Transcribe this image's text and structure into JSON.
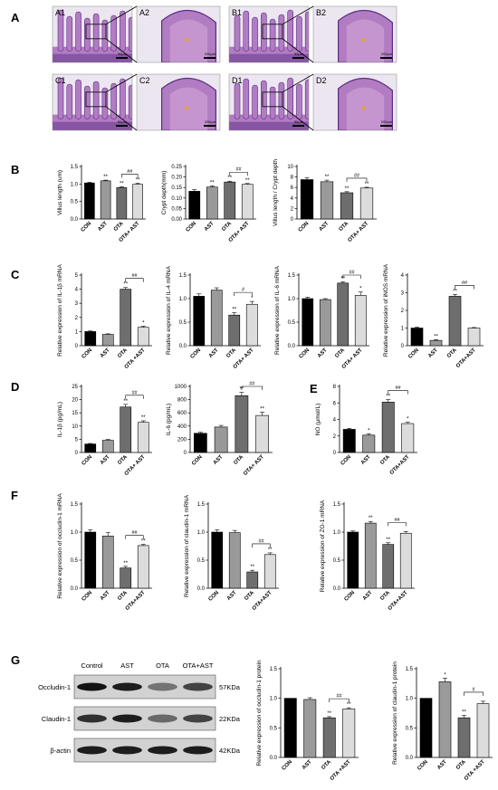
{
  "panel_labels": [
    "A",
    "B",
    "C",
    "D",
    "E",
    "F",
    "G"
  ],
  "histology": {
    "tiles": [
      {
        "label": "A1",
        "scale": "50μm"
      },
      {
        "label": "A2",
        "scale": "200μm"
      },
      {
        "label": "B1",
        "scale": "50μm"
      },
      {
        "label": "B2",
        "scale": "200μm"
      },
      {
        "label": "C1",
        "scale": "50μm"
      },
      {
        "label": "C2",
        "scale": "200μm"
      },
      {
        "label": "D1",
        "scale": "50μm"
      },
      {
        "label": "D2",
        "scale": "200μm"
      }
    ],
    "colors": {
      "tissue": "#b27cc2",
      "dark": "#5a2f86",
      "bg": "#ece6f1"
    }
  },
  "colors": {
    "bar1": "#000000",
    "bar2": "#9a9a9a",
    "bar3": "#6e6e6e",
    "bar4": "#dcdcdc"
  },
  "chart_data": [
    {
      "id": "b1",
      "type": "bar",
      "ylabel": "Villus length (um)",
      "categories": [
        "CON",
        "AST",
        "OTA",
        "OTA+ AST"
      ],
      "values": [
        1.03,
        1.09,
        0.9,
        0.99
      ],
      "errors": [
        0.02,
        0.02,
        0.02,
        0.03
      ],
      "ylim": [
        0,
        1.5
      ],
      "yticks": [
        "0.0",
        "0.5",
        "1.0",
        "1.5"
      ],
      "sig": [
        "",
        "**",
        "**",
        "**"
      ],
      "bracket": "##"
    },
    {
      "id": "b2",
      "type": "bar",
      "ylabel": "Crypt depth(mm)",
      "categories": [
        "CON",
        "AST",
        "OTA",
        "OTA+ AST"
      ],
      "values": [
        0.132,
        0.152,
        0.176,
        0.165
      ],
      "errors": [
        0.008,
        0.006,
        0.004,
        0.004
      ],
      "ylim": [
        0,
        0.25
      ],
      "yticks": [
        "0.00",
        "0.05",
        "0.10",
        "0.15",
        "0.20",
        "0.25"
      ],
      "sig": [
        "",
        "**",
        "**",
        "**"
      ],
      "bracket": "##"
    },
    {
      "id": "b3",
      "type": "bar",
      "ylabel": "Villus length / Crypt depth",
      "categories": [
        "CON",
        "AST",
        "OTA",
        "OTA+ AST"
      ],
      "values": [
        7.5,
        7.1,
        5.0,
        5.9
      ],
      "errors": [
        0.4,
        0.3,
        0.2,
        0.15
      ],
      "ylim": [
        0,
        10
      ],
      "yticks": [
        "0",
        "2",
        "4",
        "6",
        "8",
        "10"
      ],
      "sig": [
        "",
        "**",
        "**",
        "**"
      ],
      "bracket": "##"
    },
    {
      "id": "c1",
      "type": "bar",
      "ylabel": "Relative expression of IL-1β mRNA",
      "categories": [
        "CON",
        "AST",
        "OTA",
        "OTA +AST"
      ],
      "values": [
        1.0,
        0.8,
        4.0,
        1.3
      ],
      "errors": [
        0.04,
        0.04,
        0.12,
        0.08
      ],
      "ylim": [
        0,
        5
      ],
      "yticks": [
        "0",
        "1",
        "2",
        "3",
        "4",
        "5"
      ],
      "sig": [
        "",
        "",
        "**",
        "*"
      ],
      "bracket": "##"
    },
    {
      "id": "c2",
      "type": "bar",
      "ylabel": "Relative expression of IL-4 mRNA",
      "categories": [
        "CON",
        "AST",
        "OTA",
        "OTA+ AST"
      ],
      "values": [
        1.05,
        1.18,
        0.65,
        0.88
      ],
      "errors": [
        0.05,
        0.05,
        0.05,
        0.06
      ],
      "ylim": [
        0,
        1.5
      ],
      "yticks": [
        "0.0",
        "0.5",
        "1.0",
        "1.5"
      ],
      "sig": [
        "",
        "",
        "**",
        "*"
      ],
      "bracket": "#"
    },
    {
      "id": "c3",
      "type": "bar",
      "ylabel": "Relative expression of IL-6 mRNA",
      "categories": [
        "CON",
        "AST",
        "OTA",
        "OTA+ AST"
      ],
      "values": [
        1.0,
        0.98,
        1.33,
        1.07
      ],
      "errors": [
        0.03,
        0.02,
        0.03,
        0.07
      ],
      "ylim": [
        0,
        1.5
      ],
      "yticks": [
        "0.0",
        "0.5",
        "1.0",
        "1.5"
      ],
      "sig": [
        "",
        "",
        "**",
        "*"
      ],
      "bracket": "##"
    },
    {
      "id": "c4",
      "type": "bar",
      "ylabel": "Relative expression of iNOS mRNA",
      "categories": [
        "CON",
        "AST",
        "OTA",
        "OTA+AST"
      ],
      "values": [
        1.0,
        0.3,
        2.8,
        1.0
      ],
      "errors": [
        0.05,
        0.04,
        0.1,
        0.03
      ],
      "ylim": [
        0,
        4
      ],
      "yticks": [
        "0",
        "1",
        "2",
        "3",
        "4"
      ],
      "sig": [
        "",
        "**",
        "**",
        ""
      ],
      "bracket": "##"
    },
    {
      "id": "d1",
      "type": "bar",
      "ylabel": "IL-1β (pg/mL)",
      "categories": [
        "CON",
        "AST",
        "OTA",
        "OTA+ AST"
      ],
      "values": [
        3.2,
        4.6,
        17.2,
        11.4
      ],
      "errors": [
        0.2,
        0.3,
        1.0,
        0.6
      ],
      "ylim": [
        0,
        25
      ],
      "yticks": [
        "0",
        "5",
        "10",
        "15",
        "20",
        "25"
      ],
      "sig": [
        "",
        "",
        "**",
        "**"
      ],
      "bracket": "##"
    },
    {
      "id": "d2",
      "type": "bar",
      "ylabel": "IL-6 (pg/mL)",
      "categories": [
        "CON",
        "AST",
        "OTA",
        "OTA+ AST"
      ],
      "values": [
        290,
        385,
        860,
        560
      ],
      "errors": [
        15,
        25,
        50,
        50
      ],
      "ylim": [
        0,
        1000
      ],
      "yticks": [
        "0",
        "200",
        "400",
        "600",
        "800",
        "1000"
      ],
      "sig": [
        "",
        "",
        "**",
        "**"
      ],
      "bracket": "##"
    },
    {
      "id": "e1",
      "type": "bar",
      "ylabel": "NO (μmol/L)",
      "categories": [
        "CON",
        "AST",
        "OTA",
        "OTA+AST"
      ],
      "values": [
        2.8,
        2.1,
        6.1,
        3.5
      ],
      "errors": [
        0.12,
        0.15,
        0.3,
        0.15
      ],
      "ylim": [
        0,
        8
      ],
      "yticks": [
        "0",
        "2",
        "4",
        "6",
        "8"
      ],
      "sig": [
        "",
        "*",
        "**",
        "*"
      ],
      "bracket": "##"
    },
    {
      "id": "f1",
      "type": "bar",
      "ylabel": "Relative expression of occludin-1 mRNA",
      "categories": [
        "CON",
        "AST",
        "OTA",
        "OTA+AST"
      ],
      "values": [
        1.0,
        0.93,
        0.36,
        0.76
      ],
      "errors": [
        0.04,
        0.06,
        0.03,
        0.02
      ],
      "ylim": [
        0,
        1.5
      ],
      "yticks": [
        "0.0",
        "0.5",
        "1.0",
        "1.5"
      ],
      "sig": [
        "",
        "",
        "**",
        "**"
      ],
      "bracket": "##"
    },
    {
      "id": "f2",
      "type": "bar",
      "ylabel": "Relative expression of claudin-1 mRNA",
      "categories": [
        "CON",
        "AST",
        "OTA",
        "OTA+AST"
      ],
      "values": [
        1.0,
        0.99,
        0.29,
        0.6
      ],
      "errors": [
        0.04,
        0.04,
        0.03,
        0.03
      ],
      "ylim": [
        0,
        1.5
      ],
      "yticks": [
        "0.0",
        "0.5",
        "1.0",
        "1.5"
      ],
      "sig": [
        "",
        "",
        "**",
        "**"
      ],
      "bracket": "##"
    },
    {
      "id": "f3",
      "type": "bar",
      "ylabel": "Relative expression of ZO-1 mRNA",
      "categories": [
        "CON",
        "AST",
        "OTA",
        "OTA+AST"
      ],
      "values": [
        1.0,
        1.16,
        0.78,
        0.98
      ],
      "errors": [
        0.02,
        0.03,
        0.03,
        0.03
      ],
      "ylim": [
        0,
        1.5
      ],
      "yticks": [
        "0.0",
        "0.5",
        "1.0",
        "1.5"
      ],
      "sig": [
        "",
        "**",
        "**",
        ""
      ],
      "bracket": "##"
    },
    {
      "id": "g1",
      "type": "bar",
      "ylabel": "Relative expression of occludin-1 protein",
      "categories": [
        "CON",
        "AST",
        "OTA",
        "OTA +AST"
      ],
      "values": [
        1.0,
        0.98,
        0.67,
        0.82
      ],
      "errors": [
        0.0,
        0.03,
        0.02,
        0.02
      ],
      "ylim": [
        0,
        1.5
      ],
      "yticks": [
        "0.0",
        "0.5",
        "1.0",
        "1.5"
      ],
      "sig": [
        "",
        "",
        "**",
        "**"
      ],
      "bracket": "##"
    },
    {
      "id": "g2",
      "type": "bar",
      "ylabel": "Relative expression of claudin-1 protein",
      "categories": [
        "CON",
        "AST",
        "OTA",
        "OTA +AST"
      ],
      "values": [
        1.0,
        1.28,
        0.67,
        0.91
      ],
      "errors": [
        0.0,
        0.06,
        0.04,
        0.04
      ],
      "ylim": [
        0,
        1.5
      ],
      "yticks": [
        "0.0",
        "0.5",
        "1.0",
        "1.5"
      ],
      "sig": [
        "",
        "*",
        "**",
        ""
      ],
      "bracket": "#"
    }
  ],
  "western_blot": {
    "lanes": [
      "Control",
      "AST",
      "OTA",
      "OTA+AST"
    ],
    "rows": [
      {
        "name": "Occludin-1",
        "size": "57KDa",
        "intensity": [
          0.95,
          0.9,
          0.45,
          0.7
        ]
      },
      {
        "name": "Claudin-1",
        "size": "22KDa",
        "intensity": [
          0.8,
          0.9,
          0.5,
          0.7
        ]
      },
      {
        "name": "β-actin",
        "size": "42KDa",
        "intensity": [
          0.9,
          0.9,
          0.9,
          0.9
        ]
      }
    ]
  }
}
